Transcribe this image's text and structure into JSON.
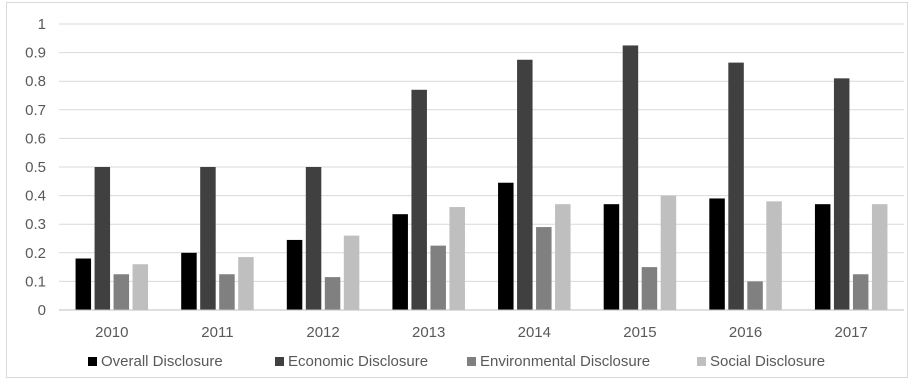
{
  "chart_data": {
    "type": "bar",
    "title": "",
    "xlabel": "",
    "ylabel": "",
    "ylim": [
      0,
      1
    ],
    "yticks": [
      "0",
      "0.1",
      "0.2",
      "0.3",
      "0.4",
      "0.5",
      "0.6",
      "0.7",
      "0.8",
      "0.9",
      "1"
    ],
    "grid": true,
    "legend_position": "bottom",
    "categories": [
      "2010",
      "2011",
      "2012",
      "2013",
      "2014",
      "2015",
      "2016",
      "2017"
    ],
    "series": [
      {
        "name": "Overall Disclosure",
        "color": "#000000",
        "values": [
          0.18,
          0.2,
          0.245,
          0.335,
          0.445,
          0.37,
          0.39,
          0.37
        ]
      },
      {
        "name": "Economic Disclosure",
        "color": "#404040",
        "values": [
          0.5,
          0.5,
          0.5,
          0.77,
          0.875,
          0.925,
          0.865,
          0.81
        ]
      },
      {
        "name": "Environmental Disclosure",
        "color": "#808080",
        "values": [
          0.125,
          0.125,
          0.115,
          0.225,
          0.29,
          0.15,
          0.1,
          0.125
        ]
      },
      {
        "name": "Social Disclosure",
        "color": "#bfbfbf",
        "values": [
          0.16,
          0.185,
          0.26,
          0.36,
          0.37,
          0.4,
          0.38,
          0.37
        ]
      }
    ]
  }
}
